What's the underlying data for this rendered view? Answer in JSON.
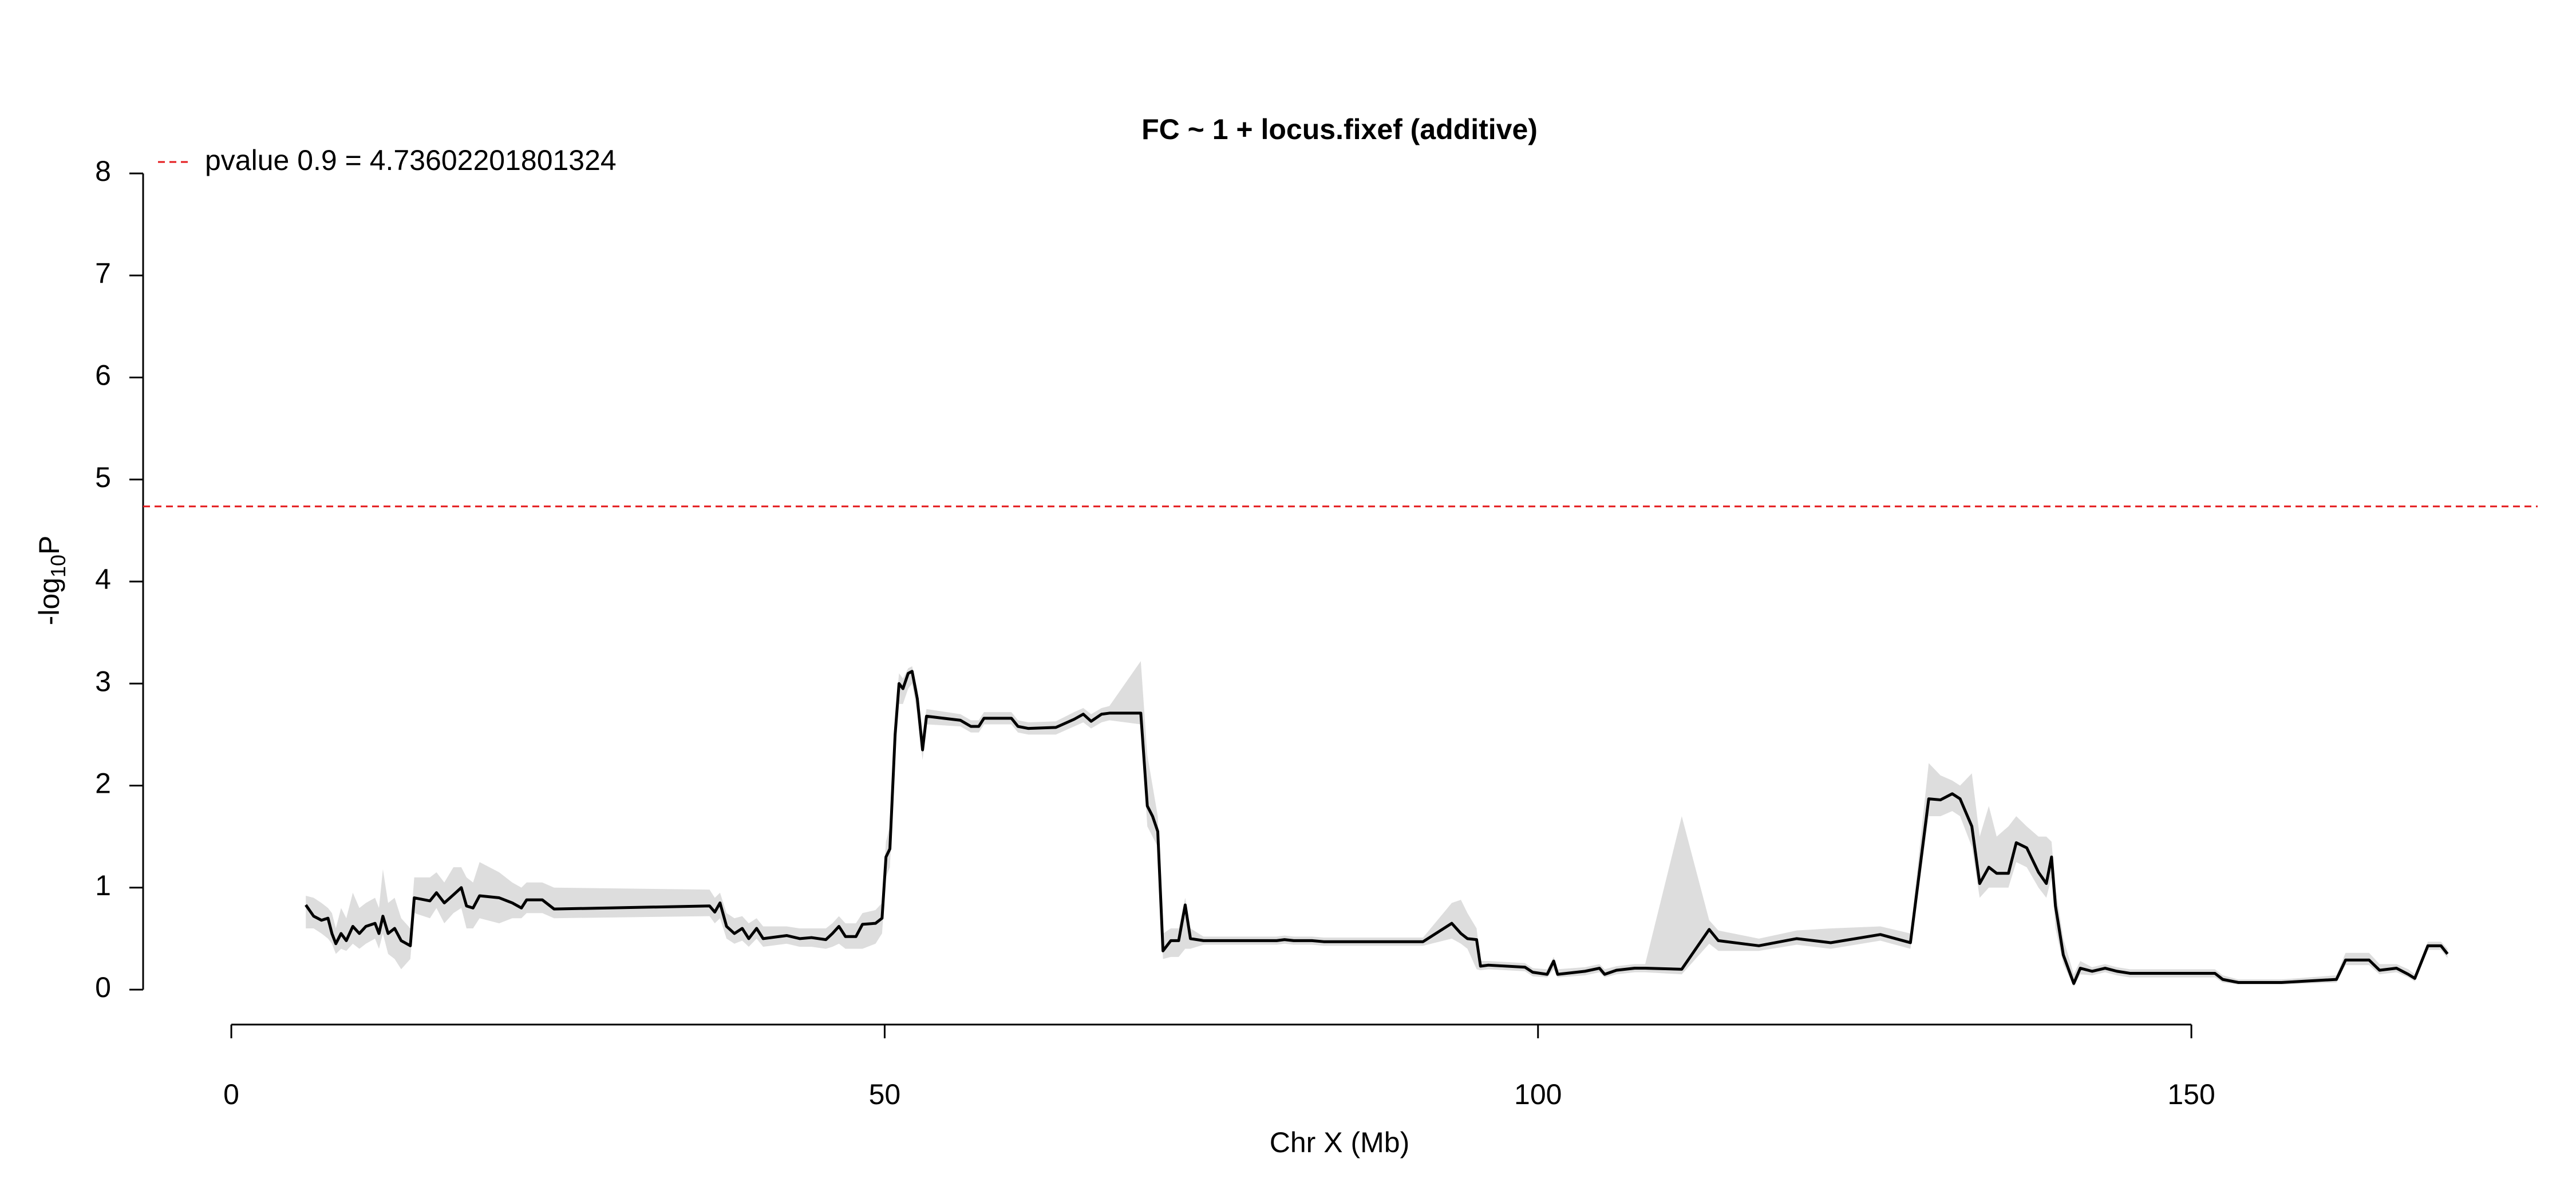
{
  "chart_data": {
    "type": "line",
    "title": "FC ~ 1 + locus.fixef (additive)",
    "xlabel": "Chr X (Mb)",
    "ylabel": [
      "-log",
      "10",
      "P"
    ],
    "xlim": [
      -6.75,
      176.5
    ],
    "xticks": [
      0,
      50,
      100,
      150
    ],
    "ylim": [
      -0.32,
      8.32
    ],
    "yticks": [
      0,
      1,
      2,
      3,
      4,
      5,
      6,
      7,
      8
    ],
    "color": "#000000",
    "threshold": {
      "value": 4.73602201801324,
      "label": "pvalue 0.9 = 4.73602201801324",
      "color": "#e41a1c"
    },
    "x": [
      5.7,
      6.3,
      6.9,
      7.4,
      7.7,
      8.0,
      8.4,
      8.8,
      9.3,
      9.8,
      10.3,
      11,
      11.3,
      11.6,
      12,
      12.5,
      13,
      13.7,
      14,
      15.2,
      15.7,
      16.3,
      17,
      17.6,
      18,
      18.5,
      19,
      20.5,
      21.5,
      22.2,
      22.6,
      23.8,
      24.7,
      36.6,
      37.0,
      37.4,
      37.9,
      38.5,
      39.1,
      39.6,
      40.2,
      40.7,
      42.5,
      43.5,
      44.4,
      45.5,
      46,
      46.5,
      47,
      47.8,
      48.3,
      49.3,
      49.8,
      50.1,
      50.4,
      50.8,
      51.1,
      51.4,
      51.8,
      52.1,
      52.5,
      52.9,
      53.2,
      55.8,
      56.6,
      57.2,
      57.6,
      59.7,
      60.2,
      61,
      63.1,
      64.5,
      65.2,
      65.8,
      66.6,
      67.2,
      69.6,
      70.1,
      70.5,
      70.9,
      71.3,
      71.9,
      72.5,
      73,
      73.4,
      74.4,
      80,
      80.6,
      81.3,
      82.7,
      83.6,
      91.2,
      93.4,
      94.1,
      94.6,
      95.3,
      95.6,
      96.2,
      99,
      99.6,
      100.7,
      101.2,
      101.5,
      103.6,
      104.7,
      105.1,
      106,
      107.4,
      108.2,
      111.0,
      113.1,
      113.8,
      116.9,
      119.8,
      122.4,
      126.2,
      128.5,
      129.9,
      130.8,
      131.7,
      132.3,
      133.2,
      133.8,
      134.5,
      135.1,
      136,
      136.6,
      137.4,
      138.3,
      138.9,
      139.3,
      139.6,
      140.2,
      141,
      141.5,
      142.4,
      143.4,
      144.3,
      145.3,
      148.5,
      151.8,
      152.4,
      153.6,
      156.9,
      161.1,
      161.8,
      163.6,
      164.4,
      165.7,
      166.6,
      167.1,
      168.1,
      169.1,
      169.6
    ],
    "values": [
      0.83,
      0.72,
      0.68,
      0.7,
      0.55,
      0.45,
      0.55,
      0.48,
      0.62,
      0.55,
      0.62,
      0.65,
      0.55,
      0.72,
      0.55,
      0.6,
      0.48,
      0.43,
      0.9,
      0.87,
      0.95,
      0.85,
      0.93,
      1.0,
      0.82,
      0.8,
      0.92,
      0.9,
      0.85,
      0.8,
      0.88,
      0.88,
      0.79,
      0.82,
      0.76,
      0.85,
      0.62,
      0.55,
      0.6,
      0.5,
      0.6,
      0.5,
      0.53,
      0.5,
      0.51,
      0.49,
      0.55,
      0.62,
      0.52,
      0.52,
      0.64,
      0.65,
      0.7,
      1.3,
      1.38,
      2.5,
      3.0,
      2.95,
      3.1,
      3.12,
      2.85,
      2.35,
      2.68,
      2.64,
      2.58,
      2.58,
      2.66,
      2.66,
      2.58,
      2.56,
      2.57,
      2.65,
      2.7,
      2.63,
      2.7,
      2.71,
      2.71,
      1.8,
      1.7,
      1.55,
      0.38,
      0.48,
      0.48,
      0.83,
      0.5,
      0.48,
      0.48,
      0.49,
      0.48,
      0.48,
      0.47,
      0.47,
      0.65,
      0.55,
      0.5,
      0.49,
      0.23,
      0.24,
      0.22,
      0.17,
      0.15,
      0.28,
      0.15,
      0.18,
      0.21,
      0.15,
      0.19,
      0.21,
      0.21,
      0.2,
      0.59,
      0.48,
      0.43,
      0.5,
      0.46,
      0.54,
      0.46,
      1.87,
      1.86,
      1.92,
      1.87,
      1.6,
      1.04,
      1.2,
      1.14,
      1.14,
      1.44,
      1.39,
      1.15,
      1.04,
      1.3,
      0.82,
      0.34,
      0.06,
      0.21,
      0.18,
      0.21,
      0.18,
      0.16,
      0.16,
      0.16,
      0.1,
      0.07,
      0.07,
      0.1,
      0.29,
      0.29,
      0.19,
      0.21,
      0.15,
      0.11,
      0.43,
      0.43,
      0.35
    ],
    "band": {
      "color": "#dddddd",
      "upper": [
        0.92,
        0.9,
        0.85,
        0.8,
        0.75,
        0.6,
        0.8,
        0.7,
        0.95,
        0.8,
        0.85,
        0.9,
        0.8,
        1.18,
        0.85,
        0.9,
        0.7,
        0.6,
        1.1,
        1.1,
        1.15,
        1.05,
        1.2,
        1.2,
        1.1,
        1.05,
        1.25,
        1.15,
        1.05,
        1.0,
        1.05,
        1.05,
        1.0,
        0.98,
        0.9,
        0.95,
        0.75,
        0.7,
        0.72,
        0.65,
        0.7,
        0.62,
        0.62,
        0.6,
        0.6,
        0.6,
        0.65,
        0.72,
        0.65,
        0.65,
        0.75,
        0.78,
        0.85,
        1.45,
        1.6,
        2.7,
        3.1,
        3.05,
        3.15,
        3.17,
        2.95,
        2.5,
        2.75,
        2.7,
        2.64,
        2.64,
        2.72,
        2.72,
        2.64,
        2.62,
        2.63,
        2.72,
        2.76,
        2.7,
        2.76,
        2.78,
        3.22,
        2.3,
        2.0,
        1.7,
        0.55,
        0.6,
        0.6,
        0.9,
        0.6,
        0.52,
        0.52,
        0.53,
        0.52,
        0.52,
        0.51,
        0.51,
        0.85,
        0.88,
        0.75,
        0.6,
        0.28,
        0.28,
        0.26,
        0.21,
        0.2,
        0.32,
        0.2,
        0.22,
        0.25,
        0.2,
        0.23,
        0.25,
        0.25,
        1.7,
        0.68,
        0.58,
        0.5,
        0.58,
        0.6,
        0.62,
        0.55,
        2.22,
        2.1,
        2.05,
        2.0,
        2.12,
        1.5,
        1.8,
        1.5,
        1.6,
        1.7,
        1.6,
        1.5,
        1.5,
        1.45,
        1.0,
        0.5,
        0.15,
        0.28,
        0.22,
        0.25,
        0.22,
        0.2,
        0.2,
        0.2,
        0.14,
        0.1,
        0.1,
        0.14,
        0.36,
        0.36,
        0.25,
        0.25,
        0.2,
        0.15,
        0.47,
        0.47,
        0.4
      ],
      "lower": [
        0.6,
        0.6,
        0.55,
        0.5,
        0.45,
        0.35,
        0.4,
        0.38,
        0.45,
        0.4,
        0.45,
        0.5,
        0.4,
        0.55,
        0.35,
        0.3,
        0.2,
        0.3,
        0.75,
        0.7,
        0.8,
        0.65,
        0.75,
        0.8,
        0.6,
        0.6,
        0.7,
        0.65,
        0.7,
        0.7,
        0.75,
        0.75,
        0.7,
        0.72,
        0.65,
        0.7,
        0.5,
        0.45,
        0.48,
        0.42,
        0.5,
        0.42,
        0.45,
        0.42,
        0.42,
        0.4,
        0.42,
        0.45,
        0.4,
        0.4,
        0.4,
        0.45,
        0.55,
        1.1,
        1.2,
        2.3,
        2.8,
        2.8,
        2.95,
        3.0,
        2.7,
        2.25,
        2.6,
        2.58,
        2.52,
        2.52,
        2.6,
        2.6,
        2.52,
        2.5,
        2.5,
        2.58,
        2.62,
        2.56,
        2.62,
        2.64,
        2.6,
        1.6,
        1.5,
        1.4,
        0.3,
        0.32,
        0.32,
        0.4,
        0.4,
        0.44,
        0.44,
        0.45,
        0.44,
        0.44,
        0.43,
        0.43,
        0.5,
        0.45,
        0.4,
        0.2,
        0.19,
        0.2,
        0.18,
        0.13,
        0.12,
        0.2,
        0.12,
        0.14,
        0.17,
        0.12,
        0.15,
        0.17,
        0.17,
        0.15,
        0.45,
        0.38,
        0.38,
        0.44,
        0.4,
        0.48,
        0.4,
        1.7,
        1.7,
        1.75,
        1.7,
        1.4,
        0.9,
        1.0,
        1.0,
        1.0,
        1.25,
        1.2,
        1.0,
        0.9,
        1.1,
        0.6,
        0.25,
        0.03,
        0.15,
        0.14,
        0.17,
        0.14,
        0.12,
        0.12,
        0.12,
        0.07,
        0.05,
        0.05,
        0.07,
        0.24,
        0.24,
        0.15,
        0.17,
        0.12,
        0.08,
        0.39,
        0.39,
        0.31
      ]
    }
  }
}
